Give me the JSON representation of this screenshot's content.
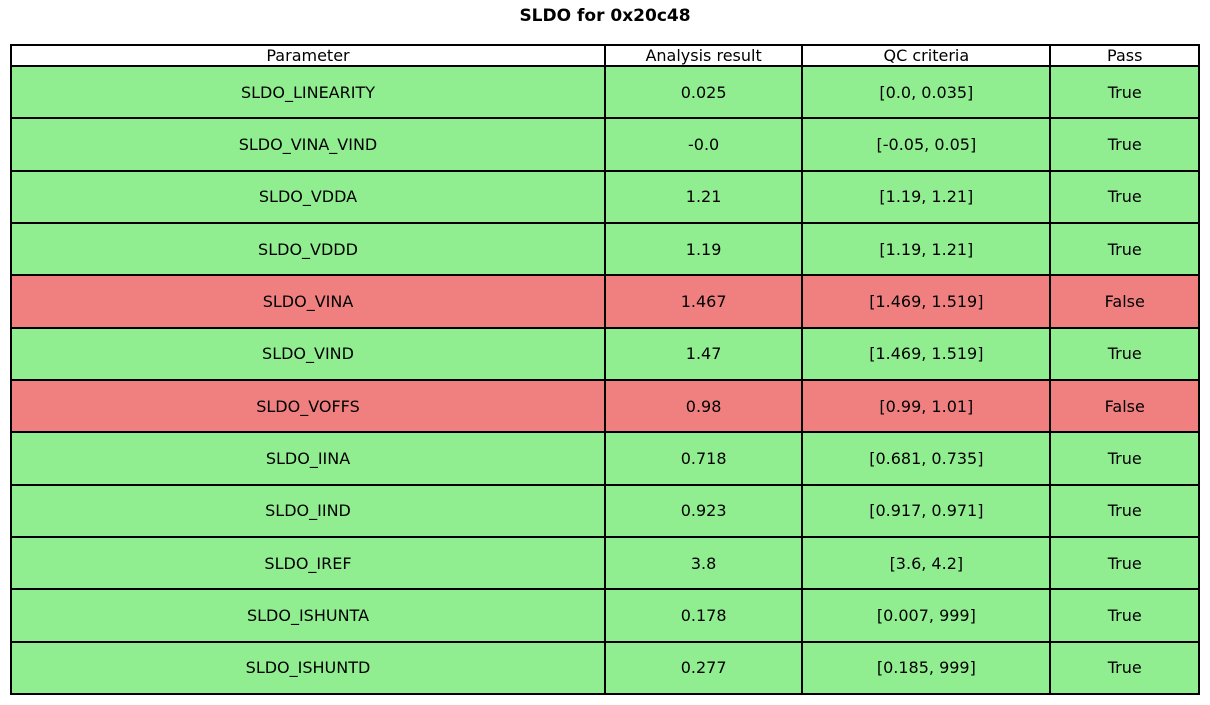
{
  "title": "SLDO for 0x20c48",
  "colors": {
    "pass_row": "#90ee90",
    "fail_row": "#f08080",
    "header_bg": "#ffffff",
    "border": "#000000",
    "text": "#000000"
  },
  "chart_data": {
    "type": "table",
    "title": "SLDO for 0x20c48",
    "columns": [
      "Parameter",
      "Analysis result",
      "QC criteria",
      "Pass"
    ],
    "rows": [
      {
        "parameter": "SLDO_LINEARITY",
        "result": "0.025",
        "criteria": "[0.0, 0.035]",
        "pass": "True"
      },
      {
        "parameter": "SLDO_VINA_VIND",
        "result": "-0.0",
        "criteria": "[-0.05, 0.05]",
        "pass": "True"
      },
      {
        "parameter": "SLDO_VDDA",
        "result": "1.21",
        "criteria": "[1.19, 1.21]",
        "pass": "True"
      },
      {
        "parameter": "SLDO_VDDD",
        "result": "1.19",
        "criteria": "[1.19, 1.21]",
        "pass": "True"
      },
      {
        "parameter": "SLDO_VINA",
        "result": "1.467",
        "criteria": "[1.469, 1.519]",
        "pass": "False"
      },
      {
        "parameter": "SLDO_VIND",
        "result": "1.47",
        "criteria": "[1.469, 1.519]",
        "pass": "True"
      },
      {
        "parameter": "SLDO_VOFFS",
        "result": "0.98",
        "criteria": "[0.99, 1.01]",
        "pass": "False"
      },
      {
        "parameter": "SLDO_IINA",
        "result": "0.718",
        "criteria": "[0.681, 0.735]",
        "pass": "True"
      },
      {
        "parameter": "SLDO_IIND",
        "result": "0.923",
        "criteria": "[0.917, 0.971]",
        "pass": "True"
      },
      {
        "parameter": "SLDO_IREF",
        "result": "3.8",
        "criteria": "[3.6, 4.2]",
        "pass": "True"
      },
      {
        "parameter": "SLDO_ISHUNTA",
        "result": "0.178",
        "criteria": "[0.007, 999]",
        "pass": "True"
      },
      {
        "parameter": "SLDO_ISHUNTD",
        "result": "0.277",
        "criteria": "[0.185, 999]",
        "pass": "True"
      }
    ]
  }
}
